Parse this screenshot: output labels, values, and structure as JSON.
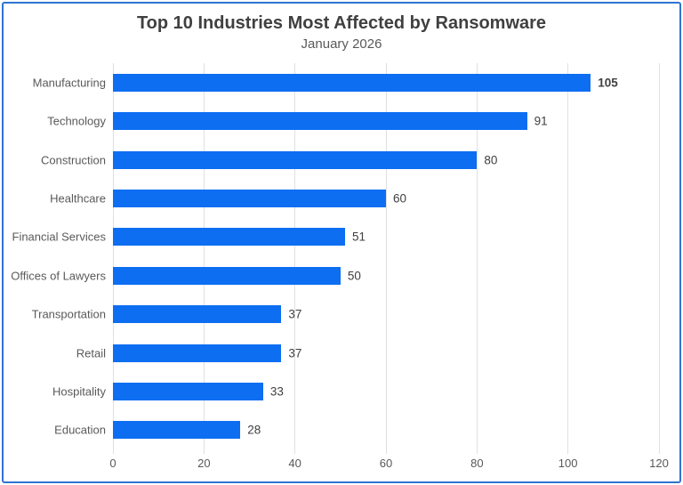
{
  "chart_data": {
    "type": "bar",
    "orientation": "horizontal",
    "title": "Top 10 Industries Most Affected by Ransomware",
    "subtitle": "January 2026",
    "categories": [
      "Manufacturing",
      "Technology",
      "Construction",
      "Healthcare",
      "Financial Services",
      "Offices of Lawyers",
      "Transportation",
      "Retail",
      "Hospitality",
      "Education"
    ],
    "values": [
      105,
      91,
      80,
      60,
      51,
      50,
      37,
      37,
      33,
      28
    ],
    "xlabel": "",
    "ylabel": "",
    "xlim": [
      0,
      120
    ],
    "xticks": [
      0,
      20,
      40,
      60,
      80,
      100,
      120
    ],
    "grid": "vertical-only",
    "legend": "none",
    "data_labels": true,
    "max_value_label_bold": true
  },
  "colors": {
    "bar": "#0d6ef2",
    "frame_border": "#2e74d1",
    "title_text": "#404040",
    "subtitle_text": "#595959",
    "axis_text": "#595959",
    "value_text": "#404040",
    "gridline": "#e0e0e0"
  }
}
